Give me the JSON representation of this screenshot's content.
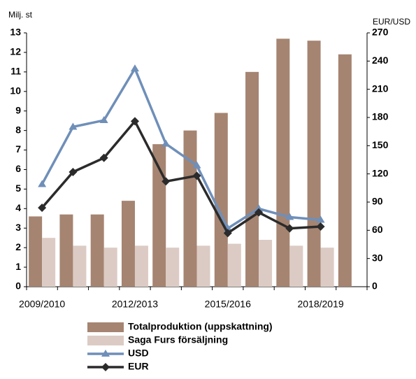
{
  "chart_data": {
    "type": "bar",
    "y_label": "Milj. st",
    "y2_label": "EUR/USD",
    "categories": [
      "2009/2010",
      null,
      null,
      "2012/2013",
      null,
      null,
      "2015/2016",
      null,
      null,
      "2018/2019",
      null
    ],
    "series": [
      {
        "name": "Totalproduktion (uppskattning)",
        "type": "bar",
        "color": "#a58471",
        "values": [
          3.6,
          3.7,
          3.7,
          4.4,
          7.3,
          8.0,
          8.9,
          11.0,
          12.7,
          12.6,
          11.9
        ]
      },
      {
        "name": "Saga Furs försäljning",
        "type": "bar",
        "color": "#dccbc4",
        "values": [
          2.5,
          2.1,
          2.0,
          2.1,
          2.0,
          2.1,
          2.2,
          2.4,
          2.1,
          2.0,
          null
        ]
      },
      {
        "name": "USD",
        "type": "line",
        "marker": "triangle",
        "axis": "y2",
        "color": "#6f8fb9",
        "values": [
          109,
          170,
          177,
          232,
          152,
          129,
          62,
          83,
          74,
          71,
          null
        ]
      },
      {
        "name": "EUR",
        "type": "line",
        "marker": "diamond",
        "axis": "y2",
        "color": "#2b2b2b",
        "values": [
          84,
          122,
          137,
          176,
          112,
          118,
          57,
          79,
          62,
          64,
          null
        ]
      }
    ],
    "ylim": [
      0,
      13
    ],
    "yticks": [
      0,
      1,
      2,
      3,
      4,
      5,
      6,
      7,
      8,
      9,
      10,
      11,
      12,
      13
    ],
    "y2lim": [
      0,
      270
    ],
    "y2ticks": [
      0,
      30,
      60,
      90,
      120,
      150,
      180,
      210,
      240,
      270
    ],
    "grid": false,
    "legend": "bottom"
  }
}
